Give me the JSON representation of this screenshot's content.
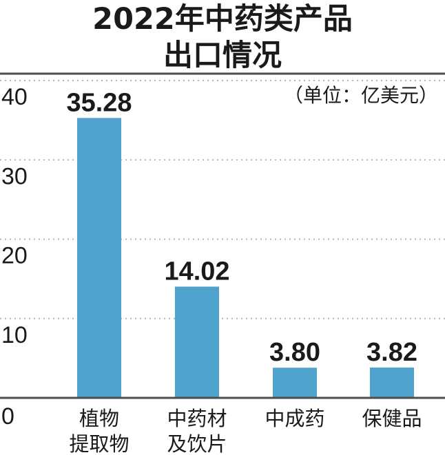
{
  "chart_data": {
    "type": "bar",
    "title_lines": [
      "2022年中药类产品",
      "出口情况"
    ],
    "unit": "（单位：亿美元）",
    "categories": [
      [
        "植物",
        "提取物"
      ],
      [
        "中药材",
        "及饮片"
      ],
      [
        "中成药"
      ],
      [
        "保健品"
      ]
    ],
    "values": [
      35.28,
      14.02,
      3.8,
      3.82
    ],
    "value_labels": [
      "35.28",
      "14.02",
      "3.80",
      "3.82"
    ],
    "ylim": [
      0,
      40
    ],
    "yticks": [
      0,
      10,
      20,
      30,
      40
    ],
    "ytick_labels": [
      "0",
      "10",
      "20",
      "30",
      "40"
    ],
    "grid": true,
    "colors": {
      "bar": "#4fa3cc",
      "grid": "#b5b5b5",
      "axis": "#4d4d4d",
      "text": "#1a1a1a"
    }
  }
}
